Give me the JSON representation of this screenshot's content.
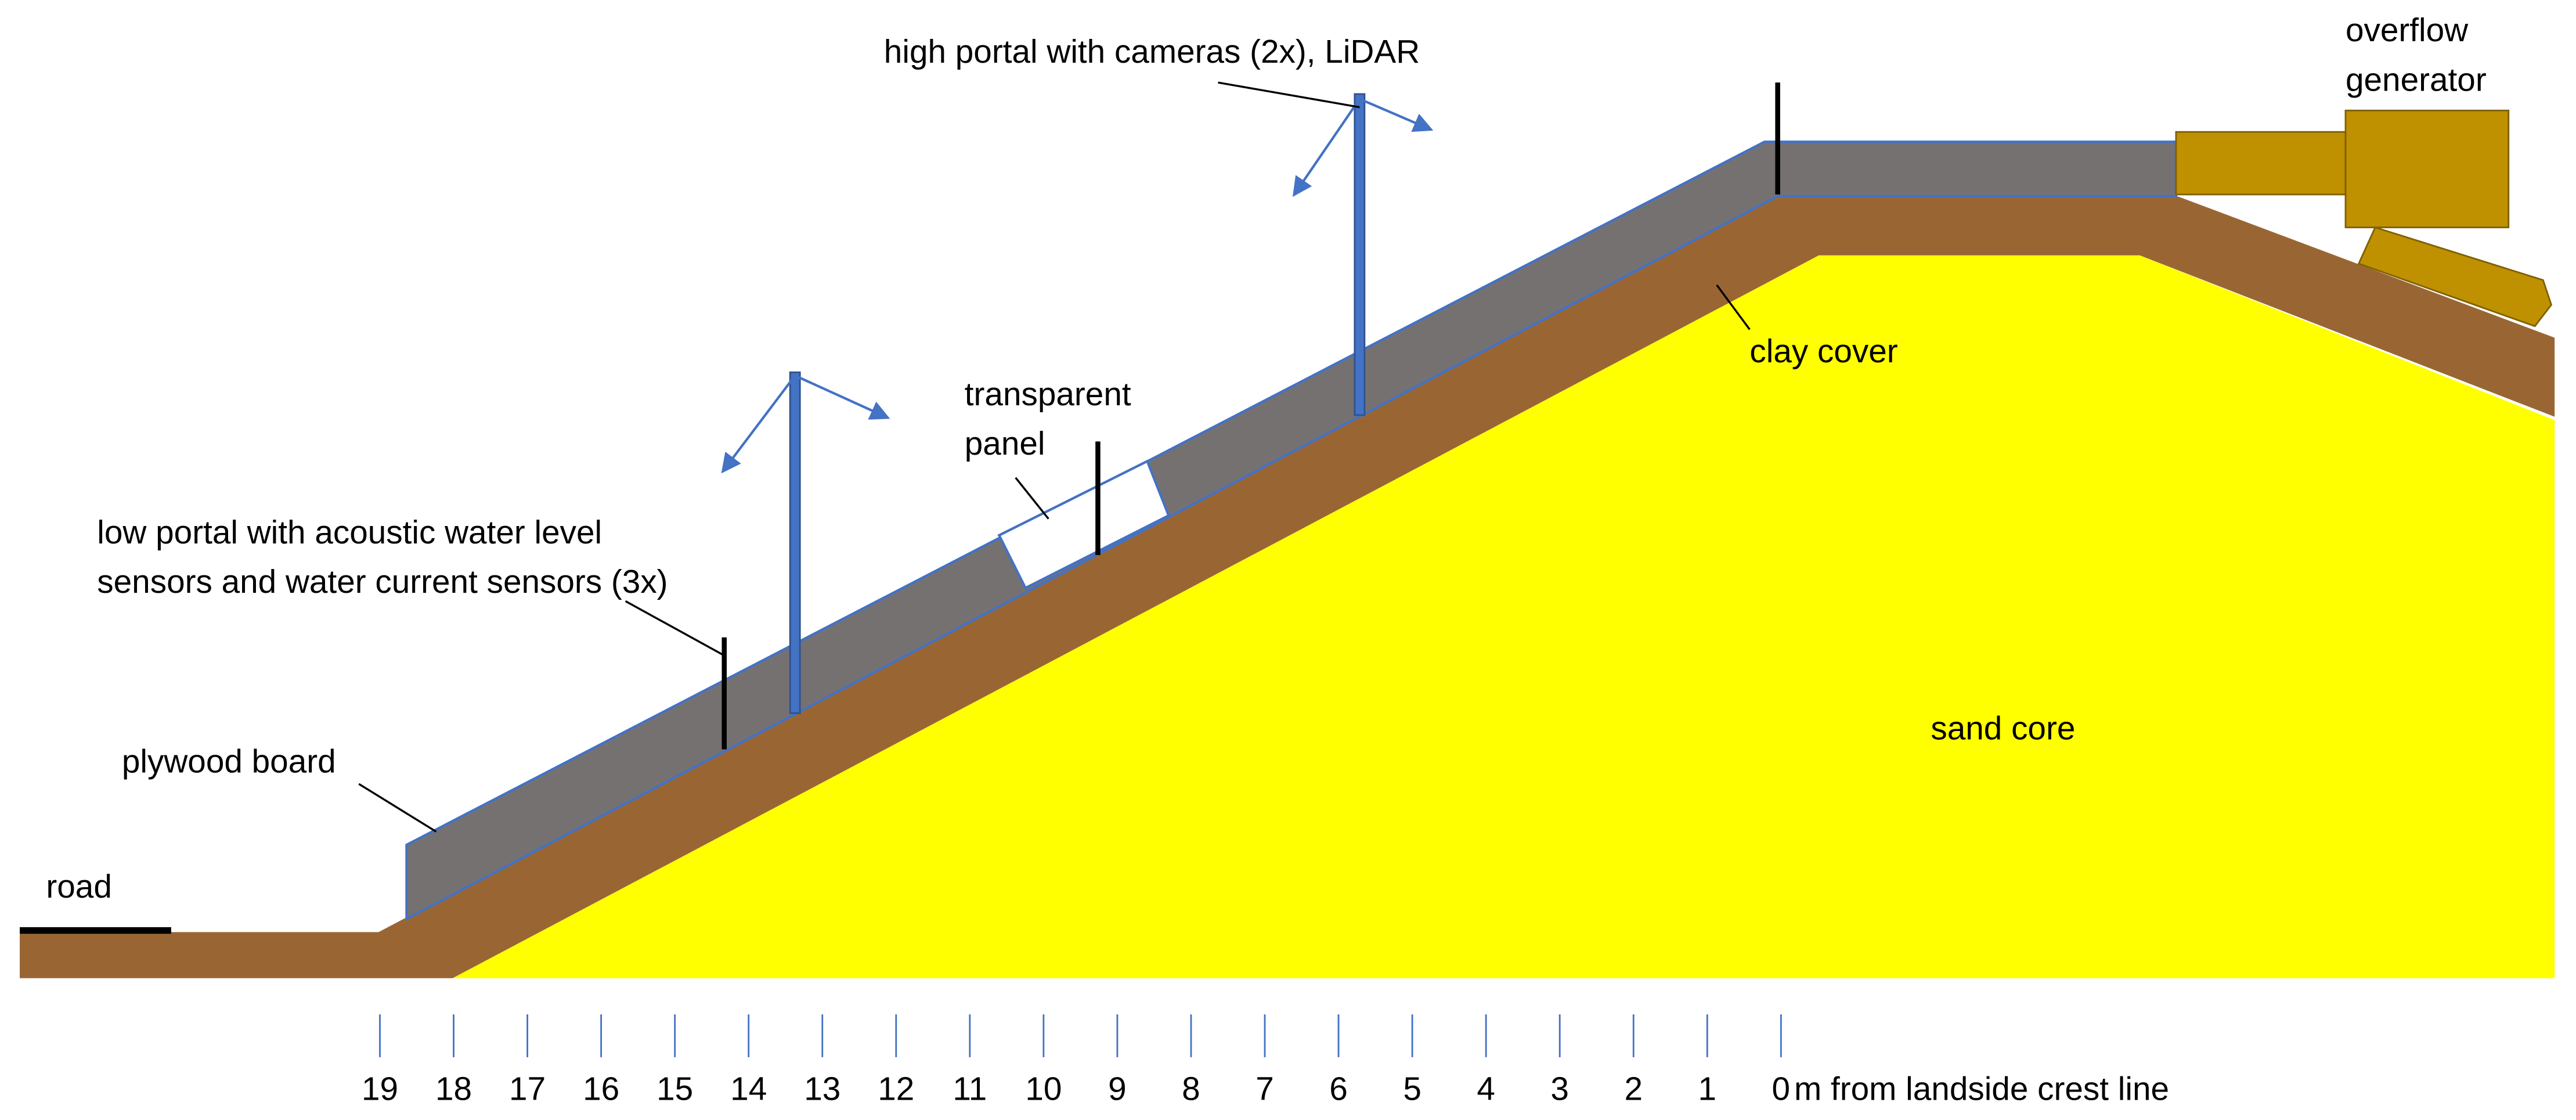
{
  "labels": {
    "high_portal": "high portal with cameras (2x), LiDAR",
    "overflow": [
      "overflow",
      "generator"
    ],
    "transparent_panel": [
      "transparent",
      "panel"
    ],
    "low_portal": [
      "low portal with acoustic water level",
      "sensors and water current sensors (3x)"
    ],
    "plywood": "plywood board",
    "road": "road",
    "clay": "clay cover",
    "sand": "sand core"
  },
  "scale": {
    "ticks": [
      19,
      18,
      17,
      16,
      15,
      14,
      13,
      12,
      11,
      10,
      9,
      8,
      7,
      6,
      5,
      4,
      3,
      2,
      1,
      0
    ],
    "unit": "m from landside crest line"
  }
}
